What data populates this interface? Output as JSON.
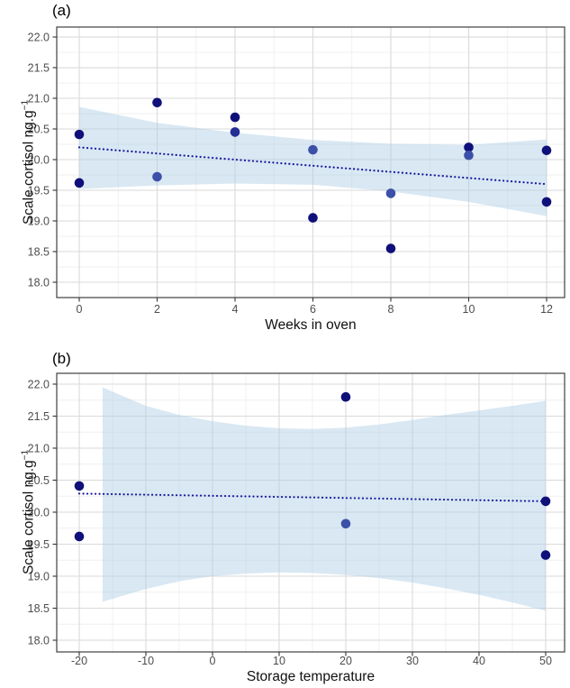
{
  "colors": {
    "background": "#ffffff",
    "grid_major": "#dadada",
    "grid_minor": "#efefef",
    "panel_border": "#3f3f3f",
    "tick_mark": "#333333",
    "tick_text": "#4d4d4d",
    "band_fill_rgba": "rgba(170,203,228,0.45)",
    "trend_line": "#1b1b9e",
    "points": {
      "dark": "#10107a",
      "middark": "#252d96",
      "medium": "#3c50a8"
    }
  },
  "chart_data": [
    {
      "type": "scatter",
      "panel_label": "(a)",
      "xlabel": "Weeks in oven",
      "ylabel_main": "Scale cortisol ng.g",
      "ylabel_sup": "−1",
      "xlim": [
        -0.578,
        12.462
      ],
      "ylim": [
        17.75,
        22.162
      ],
      "grid": true,
      "xticks": [
        {
          "v": 0,
          "label": "0"
        },
        {
          "v": 2,
          "label": "2"
        },
        {
          "v": 4,
          "label": "4"
        },
        {
          "v": 6,
          "label": "6"
        },
        {
          "v": 8,
          "label": "8"
        },
        {
          "v": 10,
          "label": "10"
        },
        {
          "v": 12,
          "label": "12"
        }
      ],
      "yticks": [
        {
          "v": 18.0,
          "label": "18.0"
        },
        {
          "v": 18.5,
          "label": "18.5"
        },
        {
          "v": 19.0,
          "label": "19.0"
        },
        {
          "v": 19.5,
          "label": "19.5"
        },
        {
          "v": 20.0,
          "label": "20.0"
        },
        {
          "v": 20.5,
          "label": "20.5"
        },
        {
          "v": 21.0,
          "label": "21.0"
        },
        {
          "v": 21.5,
          "label": "21.5"
        },
        {
          "v": 22.0,
          "label": "22.0"
        }
      ],
      "points": [
        {
          "x": 0,
          "y": 20.41,
          "shade": "dark"
        },
        {
          "x": 0,
          "y": 19.62,
          "shade": "dark"
        },
        {
          "x": 2,
          "y": 20.93,
          "shade": "dark"
        },
        {
          "x": 2,
          "y": 19.72,
          "shade": "medium"
        },
        {
          "x": 4,
          "y": 20.69,
          "shade": "dark"
        },
        {
          "x": 4,
          "y": 20.45,
          "shade": "middark"
        },
        {
          "x": 6,
          "y": 20.16,
          "shade": "medium"
        },
        {
          "x": 6,
          "y": 19.05,
          "shade": "dark"
        },
        {
          "x": 8,
          "y": 19.45,
          "shade": "medium"
        },
        {
          "x": 8,
          "y": 18.55,
          "shade": "dark"
        },
        {
          "x": 10,
          "y": 20.2,
          "shade": "dark"
        },
        {
          "x": 10,
          "y": 20.07,
          "shade": "medium"
        },
        {
          "x": 12,
          "y": 20.15,
          "shade": "dark"
        },
        {
          "x": 12,
          "y": 19.31,
          "shade": "dark"
        }
      ],
      "trend": {
        "x1": 0,
        "y1": 20.2,
        "x2": 12,
        "y2": 19.6
      },
      "band": {
        "x": [
          0,
          2,
          4,
          6,
          8,
          10,
          12
        ],
        "upper": [
          20.86,
          20.6,
          20.44,
          20.32,
          20.26,
          20.24,
          20.33
        ],
        "lower": [
          19.52,
          19.58,
          19.61,
          19.59,
          19.48,
          19.31,
          19.08
        ]
      }
    },
    {
      "type": "scatter",
      "panel_label": "(b)",
      "xlabel": "Storage temperature",
      "ylabel_main": "Scale cortisol ng.g",
      "ylabel_sup": "−1",
      "xlim": [
        -23.38,
        52.84
      ],
      "ylim": [
        17.817,
        22.169
      ],
      "grid": true,
      "xticks": [
        {
          "v": -20,
          "label": "-20"
        },
        {
          "v": -10,
          "label": "-10"
        },
        {
          "v": 0,
          "label": "0"
        },
        {
          "v": 10,
          "label": "10"
        },
        {
          "v": 20,
          "label": "20"
        },
        {
          "v": 30,
          "label": "30"
        },
        {
          "v": 40,
          "label": "40"
        },
        {
          "v": 50,
          "label": "50"
        }
      ],
      "yticks": [
        {
          "v": 18.0,
          "label": "18.0"
        },
        {
          "v": 18.5,
          "label": "18.5"
        },
        {
          "v": 19.0,
          "label": "19.0"
        },
        {
          "v": 19.5,
          "label": "19.5"
        },
        {
          "v": 20.0,
          "label": "20.0"
        },
        {
          "v": 20.5,
          "label": "20.5"
        },
        {
          "v": 21.0,
          "label": "21.0"
        },
        {
          "v": 21.5,
          "label": "21.5"
        },
        {
          "v": 22.0,
          "label": "22.0"
        }
      ],
      "points": [
        {
          "x": -20,
          "y": 20.41,
          "shade": "dark"
        },
        {
          "x": -20,
          "y": 19.62,
          "shade": "dark"
        },
        {
          "x": 20,
          "y": 21.8,
          "shade": "dark"
        },
        {
          "x": 20,
          "y": 19.82,
          "shade": "medium"
        },
        {
          "x": 50,
          "y": 20.17,
          "shade": "dark"
        },
        {
          "x": 50,
          "y": 19.33,
          "shade": "dark"
        }
      ],
      "trend": {
        "x1": -20,
        "y1": 20.29,
        "x2": 50,
        "y2": 20.17
      },
      "band": {
        "x": [
          -16.5,
          -10,
          -5,
          0,
          5,
          10,
          15,
          20,
          25,
          30,
          35,
          40,
          45,
          50
        ],
        "upper": [
          21.95,
          21.66,
          21.52,
          21.42,
          21.35,
          21.31,
          21.3,
          21.32,
          21.37,
          21.44,
          21.52,
          21.59,
          21.66,
          21.74
        ],
        "lower": [
          18.6,
          18.8,
          18.92,
          19.0,
          19.04,
          19.06,
          19.05,
          19.02,
          18.97,
          18.9,
          18.81,
          18.71,
          18.59,
          18.46
        ]
      }
    }
  ]
}
